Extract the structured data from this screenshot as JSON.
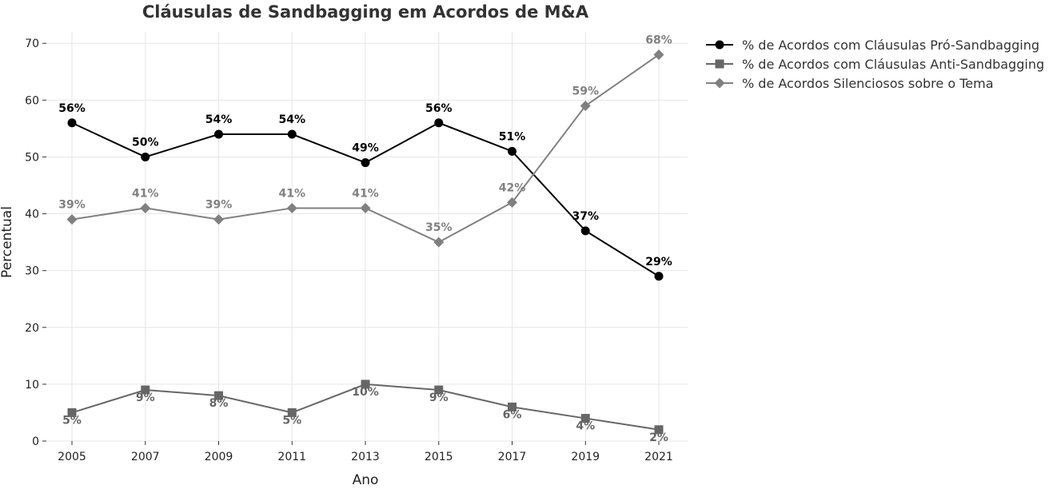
{
  "chart_data": {
    "type": "line",
    "title": "Cláusulas de Sandbagging em Acordos de M&A",
    "xlabel": "Ano",
    "ylabel": "Percentual",
    "x": [
      2005,
      2007,
      2009,
      2011,
      2013,
      2015,
      2017,
      2019,
      2021
    ],
    "x_tick_labels": [
      "2005",
      "2007",
      "2009",
      "2011",
      "2013",
      "2015",
      "2017",
      "2019",
      "2021"
    ],
    "ylim": [
      0,
      72
    ],
    "y_ticks": [
      0,
      10,
      20,
      30,
      40,
      50,
      60,
      70
    ],
    "y_tick_labels": [
      "0",
      "10",
      "20",
      "30",
      "40",
      "50",
      "60",
      "70"
    ],
    "grid": true,
    "legend_position": "top-right outside",
    "series": [
      {
        "name": "% de Acordos com Cláusulas Pró-Sandbagging",
        "values": [
          56,
          50,
          54,
          54,
          49,
          56,
          51,
          37,
          29
        ],
        "labels": [
          "56%",
          "50%",
          "54%",
          "54%",
          "49%",
          "56%",
          "51%",
          "37%",
          "29%"
        ],
        "color": "#000000",
        "marker": "circle",
        "label_position": "above"
      },
      {
        "name": "% de Acordos com Cláusulas Anti-Sandbagging",
        "values": [
          5,
          9,
          8,
          5,
          10,
          9,
          6,
          4,
          2
        ],
        "labels": [
          "5%",
          "9%",
          "8%",
          "5%",
          "10%",
          "9%",
          "6%",
          "4%",
          "2%"
        ],
        "color": "#666666",
        "marker": "square",
        "label_position": "below"
      },
      {
        "name": "% de Acordos Silenciosos sobre o Tema",
        "values": [
          39,
          41,
          39,
          41,
          41,
          35,
          42,
          59,
          68
        ],
        "labels": [
          "39%",
          "41%",
          "39%",
          "41%",
          "41%",
          "35%",
          "42%",
          "59%",
          "68%"
        ],
        "color": "#808080",
        "marker": "diamond",
        "label_position": "above"
      }
    ]
  }
}
